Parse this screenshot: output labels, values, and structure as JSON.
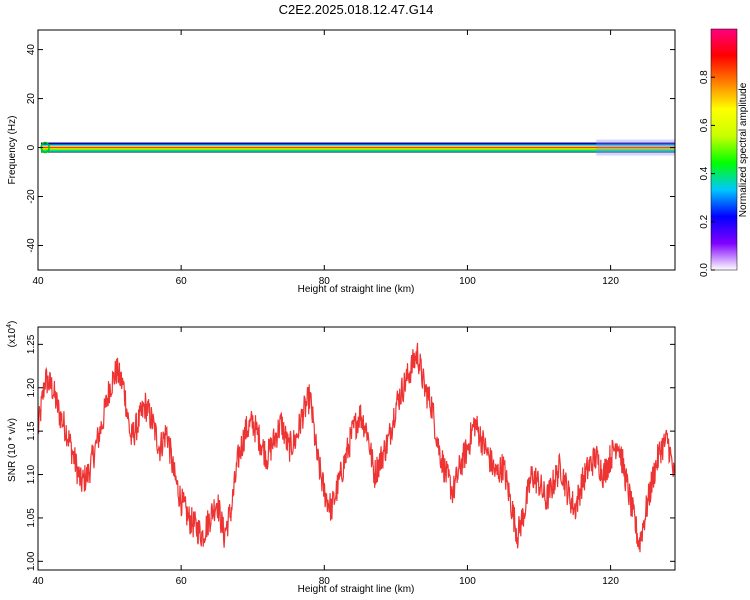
{
  "title": "C2E2.2025.018.12.47.G14",
  "chart_data": [
    {
      "type": "heatmap",
      "xlabel": "Height of straight line (km)",
      "ylabel": "Frequency (Hz)",
      "xlim": [
        40,
        129
      ],
      "ylim": [
        -50,
        48
      ],
      "x_ticks": [
        40,
        60,
        80,
        100,
        120
      ],
      "y_ticks": [
        40,
        20,
        0,
        -20,
        -40
      ],
      "grid": false,
      "band_center_hz": 0,
      "colorbar": {
        "label": "Normalized spectral amplitude",
        "range": [
          0,
          1
        ],
        "ticks": [
          0.0,
          0.2,
          0.4,
          0.6,
          0.8
        ],
        "colors": [
          "#ffffff",
          "#7f00ff",
          "#0000ff",
          "#00c8ff",
          "#00ff00",
          "#c8ff00",
          "#ffff00",
          "#ff8000",
          "#ff0000",
          "#ff0080"
        ]
      }
    },
    {
      "type": "line",
      "xlabel": "Height of straight line (km)",
      "ylabel": "SNR (10 * v/v)",
      "y_multiplier": "(x10",
      "y_multiplier_exp": "4",
      "y_multiplier_close": ")",
      "xlim": [
        40,
        129
      ],
      "ylim": [
        0.99,
        1.27
      ],
      "x_ticks": [
        40,
        60,
        80,
        100,
        120
      ],
      "y_ticks": [
        1.0,
        1.05,
        1.1,
        1.15,
        1.2,
        1.25
      ],
      "color": "#ee3333",
      "series": [
        {
          "x": [
            40,
            41,
            42,
            43,
            44,
            45,
            46,
            47,
            48,
            49,
            50,
            51,
            52,
            53,
            54,
            55,
            56,
            57,
            58,
            59,
            60,
            61,
            62,
            63,
            64,
            65,
            66,
            67,
            68,
            69,
            70,
            71,
            72,
            73,
            74,
            75,
            76,
            77,
            78,
            79,
            80,
            81,
            82,
            83,
            84,
            85,
            86,
            87,
            88,
            89,
            90,
            91,
            92,
            93,
            94,
            95,
            96,
            97,
            98,
            99,
            100,
            101,
            102,
            103,
            104,
            105,
            106,
            107,
            108,
            109,
            110,
            111,
            112,
            113,
            114,
            115,
            116,
            117,
            118,
            119,
            120,
            121,
            122,
            123,
            124,
            125,
            126,
            127,
            128,
            129
          ],
          "values": [
            1.15,
            1.21,
            1.2,
            1.17,
            1.15,
            1.12,
            1.09,
            1.1,
            1.13,
            1.16,
            1.2,
            1.22,
            1.2,
            1.14,
            1.16,
            1.18,
            1.16,
            1.13,
            1.15,
            1.1,
            1.07,
            1.05,
            1.04,
            1.03,
            1.05,
            1.07,
            1.03,
            1.06,
            1.12,
            1.15,
            1.16,
            1.14,
            1.12,
            1.14,
            1.16,
            1.13,
            1.14,
            1.17,
            1.19,
            1.12,
            1.08,
            1.06,
            1.09,
            1.12,
            1.15,
            1.17,
            1.15,
            1.1,
            1.12,
            1.14,
            1.18,
            1.2,
            1.22,
            1.24,
            1.2,
            1.18,
            1.13,
            1.1,
            1.08,
            1.11,
            1.13,
            1.16,
            1.14,
            1.12,
            1.1,
            1.11,
            1.07,
            1.03,
            1.06,
            1.1,
            1.09,
            1.07,
            1.09,
            1.11,
            1.08,
            1.06,
            1.09,
            1.11,
            1.12,
            1.1,
            1.12,
            1.14,
            1.1,
            1.06,
            1.02,
            1.06,
            1.1,
            1.13,
            1.14,
            1.09
          ]
        }
      ]
    }
  ]
}
